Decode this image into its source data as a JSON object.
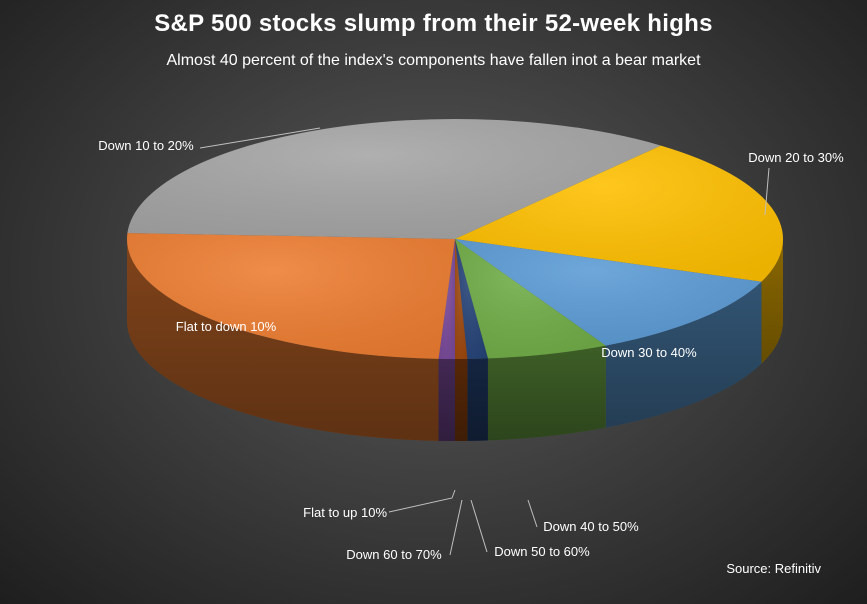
{
  "chart_data": {
    "type": "pie",
    "style": "3d",
    "title": "S&P 500 stocks slump from their 52-week highs",
    "subtitle": "Almost 40 percent of the index's components have fallen inot a bear market",
    "source": "Source: Refinitiv",
    "slices": [
      {
        "label": "Flat to up 10%",
        "value": 0.8,
        "color": "#7a4a9a"
      },
      {
        "label": "Flat to down 10%",
        "value": 25.0,
        "color": "#ed7d31"
      },
      {
        "label": "Down 10 to 20%",
        "value": 35.0,
        "color": "#a5a5a5"
      },
      {
        "label": "Down 20 to 30%",
        "value": 20.0,
        "color": "#ffc000"
      },
      {
        "label": "Down 30 to 40%",
        "value": 11.6,
        "color": "#5b9bd5"
      },
      {
        "label": "Down 40 to 50%",
        "value": 6.0,
        "color": "#70ad47"
      },
      {
        "label": "Down 50 to 60%",
        "value": 1.0,
        "color": "#264478"
      },
      {
        "label": "Down 60 to 70%",
        "value": 0.6,
        "color": "#9e480e"
      }
    ]
  }
}
